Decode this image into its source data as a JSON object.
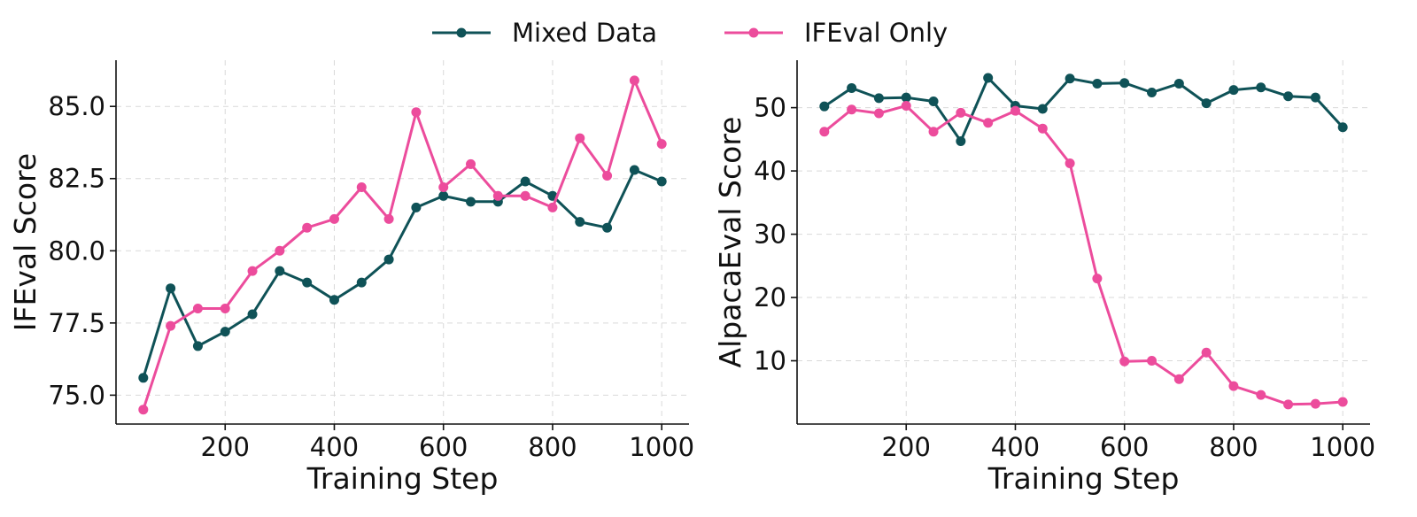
{
  "legend": [
    {
      "name": "Mixed Data",
      "color": "#0f5257"
    },
    {
      "name": "IFEval Only",
      "color": "#ec4c9c"
    }
  ],
  "chart_data": [
    {
      "type": "line",
      "xlabel": "Training Step",
      "ylabel": "IFEval Score",
      "xlim": [
        0,
        1050
      ],
      "ylim": [
        74.0,
        86.6
      ],
      "xticks": [
        200,
        400,
        600,
        800,
        1000
      ],
      "yticks": [
        75.0,
        77.5,
        80.0,
        82.5,
        85.0
      ],
      "ytick_labels": [
        "75.0",
        "77.5",
        "80.0",
        "82.5",
        "85.0"
      ],
      "grid": true,
      "x": [
        50,
        100,
        150,
        200,
        250,
        300,
        350,
        400,
        450,
        500,
        550,
        600,
        650,
        700,
        750,
        800,
        850,
        900,
        950,
        1000
      ],
      "series": [
        {
          "name": "Mixed Data",
          "color": "#0f5257",
          "values": [
            75.6,
            78.7,
            76.7,
            77.2,
            77.8,
            79.3,
            78.9,
            78.3,
            78.9,
            79.7,
            81.5,
            81.9,
            81.7,
            81.7,
            82.4,
            81.9,
            81.0,
            80.8,
            82.8,
            82.4
          ]
        },
        {
          "name": "IFEval Only",
          "color": "#ec4c9c",
          "values": [
            74.5,
            77.4,
            78.0,
            78.0,
            79.3,
            80.0,
            80.8,
            81.1,
            82.2,
            81.1,
            84.8,
            82.2,
            83.0,
            81.9,
            81.9,
            81.5,
            83.9,
            82.6,
            85.9,
            83.7
          ]
        }
      ]
    },
    {
      "type": "line",
      "xlabel": "Training Step",
      "ylabel": "AlpacaEval Score",
      "xlim": [
        0,
        1050
      ],
      "ylim": [
        0,
        57.5
      ],
      "xticks": [
        200,
        400,
        600,
        800,
        1000
      ],
      "yticks": [
        10,
        20,
        30,
        40,
        50
      ],
      "ytick_labels": [
        "10",
        "20",
        "30",
        "40",
        "50"
      ],
      "grid": true,
      "x": [
        50,
        100,
        150,
        200,
        250,
        300,
        350,
        400,
        450,
        500,
        550,
        600,
        650,
        700,
        750,
        800,
        850,
        900,
        950,
        1000
      ],
      "series": [
        {
          "name": "Mixed Data",
          "color": "#0f5257",
          "values": [
            50.2,
            53.1,
            51.5,
            51.6,
            51.0,
            44.7,
            54.7,
            50.3,
            49.8,
            54.6,
            53.8,
            53.9,
            52.4,
            53.8,
            50.7,
            52.8,
            53.2,
            51.8,
            51.6,
            46.9
          ]
        },
        {
          "name": "IFEval Only",
          "color": "#ec4c9c",
          "values": [
            46.2,
            49.7,
            49.1,
            50.3,
            46.2,
            49.2,
            47.6,
            49.5,
            46.7,
            41.2,
            23.0,
            9.9,
            10.0,
            7.1,
            11.3,
            6.0,
            4.6,
            3.1,
            3.2,
            3.5
          ]
        }
      ]
    }
  ]
}
